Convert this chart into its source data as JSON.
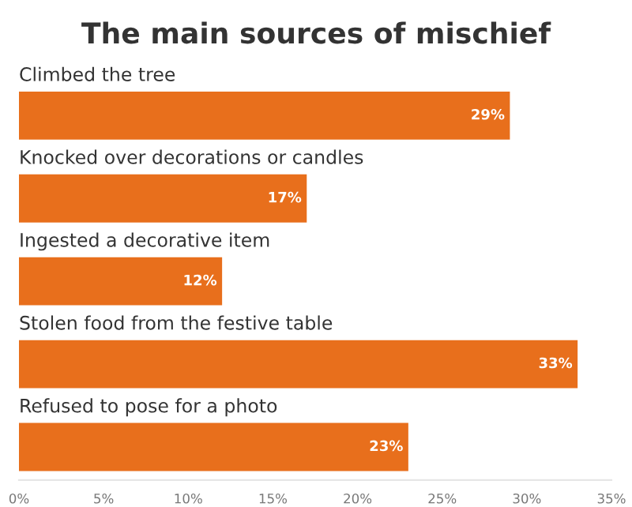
{
  "chart_data": {
    "type": "bar",
    "orientation": "horizontal",
    "title": "The main sources of mischief",
    "categories": [
      "Climbed the tree",
      "Knocked over decorations or candles",
      "Ingested a decorative item",
      "Stolen food from the festive table",
      "Refused to pose for a photo"
    ],
    "values": [
      29,
      17,
      12,
      33,
      23
    ],
    "value_labels": [
      "29%",
      "17%",
      "12%",
      "33%",
      "23%"
    ],
    "color": "#e86f1c",
    "xlim": [
      0,
      35
    ],
    "xticks": [
      {
        "value": 0,
        "label": "0%"
      },
      {
        "value": 5,
        "label": "5%"
      },
      {
        "value": 10,
        "label": "10%"
      },
      {
        "value": 15,
        "label": "15%"
      },
      {
        "value": 20,
        "label": "20%"
      },
      {
        "value": 25,
        "label": "25%"
      },
      {
        "value": 30,
        "label": "30%"
      },
      {
        "value": 35,
        "label": "35%"
      }
    ],
    "grid": false,
    "legend": false
  }
}
